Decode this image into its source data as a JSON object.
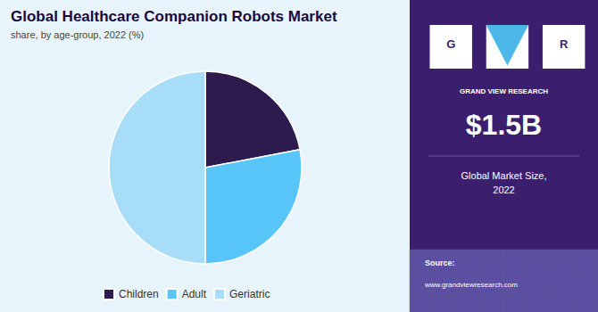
{
  "chart_data": {
    "type": "pie",
    "title": "Global Healthcare Companion Robots Market",
    "subtitle": "share, by age-group, 2022 (%)",
    "categories": [
      "Children",
      "Adult",
      "Geriatric"
    ],
    "values": [
      22,
      28,
      50
    ],
    "colors": [
      "#2d1b4e",
      "#57c5f7",
      "#a8ddf7"
    ],
    "legend": "bottom",
    "data_labels": false,
    "annotations": [
      "G",
      "R",
      "GRAND VIEW RESEARCH",
      "$1.5B",
      "Global Market Size,\n2022",
      "Source:",
      "www.grandviewresearch.com"
    ]
  }
}
